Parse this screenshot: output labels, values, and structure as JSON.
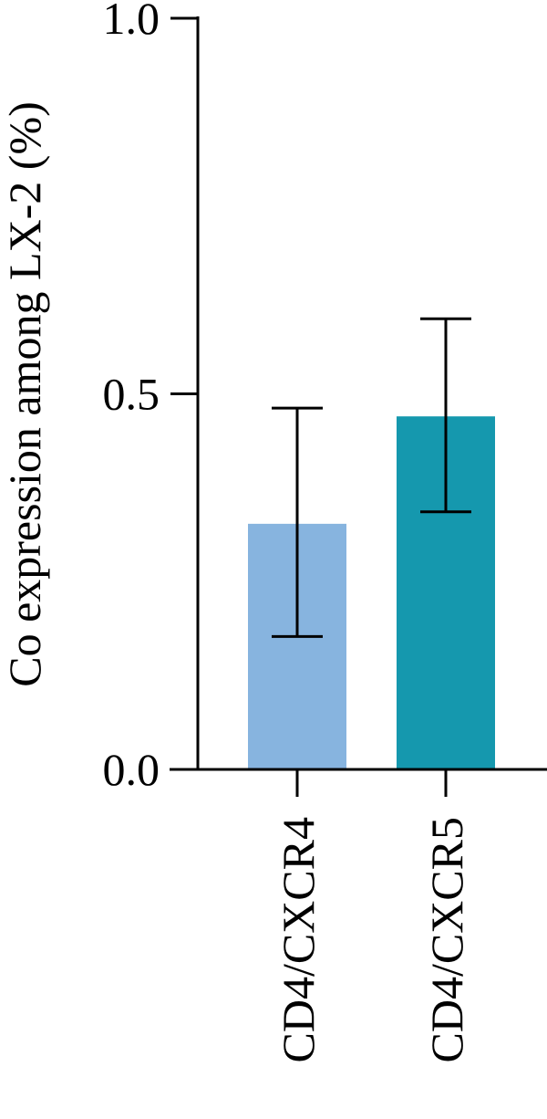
{
  "chart_data": {
    "type": "bar",
    "title": "",
    "xlabel": "",
    "ylabel": "Co expression among LX-2 (%)",
    "ylim": [
      0,
      1.0
    ],
    "yticks": [
      0.0,
      0.5,
      1.0
    ],
    "ytick_labels": [
      "0.0",
      "0.5",
      "1.0"
    ],
    "categories": [
      "CD4/CXCR4",
      "CD4/CXCR5"
    ],
    "values": [
      0.327,
      0.47
    ],
    "error_upper": [
      0.481,
      0.6
    ],
    "error_lower": [
      0.177,
      0.343
    ],
    "bar_colors": [
      "#87b4df",
      "#1598ae"
    ],
    "grid": false,
    "legend": "none"
  }
}
